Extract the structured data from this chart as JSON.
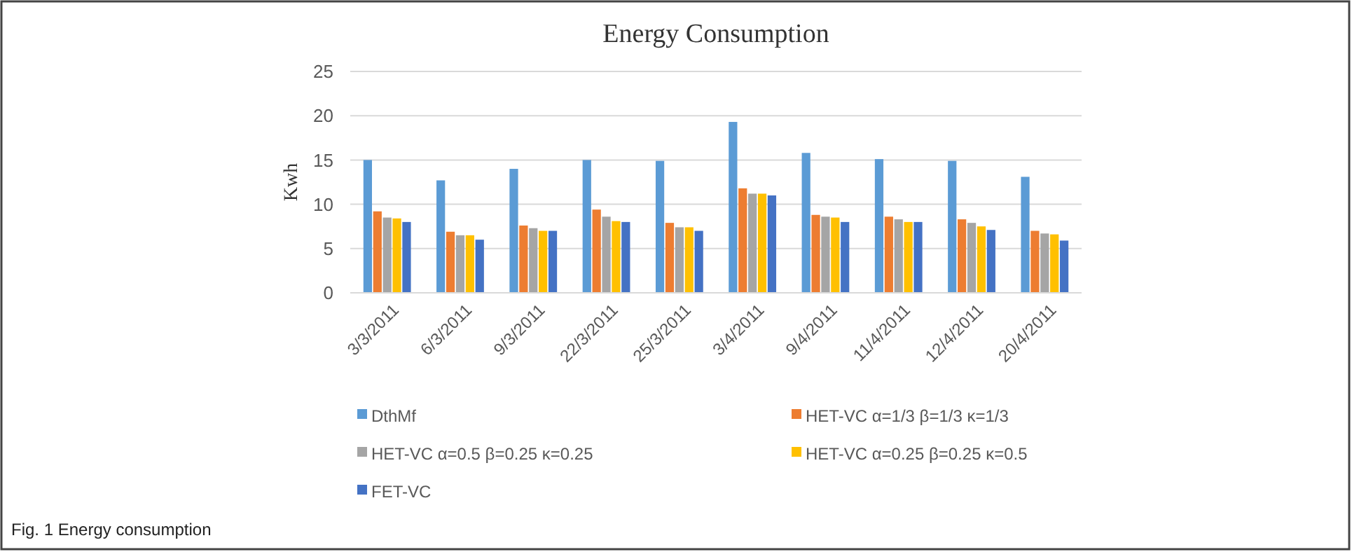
{
  "chart_data": {
    "type": "bar",
    "title": "Energy  Consumption",
    "ylabel": "Kwh",
    "categories": [
      "3/3/2011",
      "6/3/2011",
      "9/3/2011",
      "22/3/2011",
      "25/3/2011",
      "3/4/2011",
      "9/4/2011",
      "11/4/2011",
      "12/4/2011",
      "20/4/2011"
    ],
    "series": [
      {
        "name": "DthMf",
        "color": "#5b9bd5",
        "values": [
          15,
          12.7,
          14,
          15,
          14.9,
          19.3,
          15.8,
          15.1,
          14.9,
          13.1
        ]
      },
      {
        "name": "HET-VC   α=1/3 β=1/3 κ=1/3",
        "color": "#ed7d31",
        "values": [
          9.2,
          6.9,
          7.6,
          9.4,
          7.9,
          11.8,
          8.8,
          8.6,
          8.3,
          7.0
        ]
      },
      {
        "name": "HET-VC α=0.5 β=0.25 κ=0.25",
        "color": "#a5a5a5",
        "values": [
          8.5,
          6.5,
          7.3,
          8.6,
          7.4,
          11.2,
          8.6,
          8.3,
          7.9,
          6.7
        ]
      },
      {
        "name": "HET-VC α=0.25 β=0.25 κ=0.5",
        "color": "#ffc000",
        "values": [
          8.4,
          6.5,
          7.0,
          8.1,
          7.4,
          11.2,
          8.5,
          8.0,
          7.5,
          6.6
        ]
      },
      {
        "name": "FET-VC",
        "color": "#4472c4",
        "values": [
          8.0,
          6.0,
          7.0,
          8.0,
          7.0,
          11.0,
          8.0,
          8.0,
          7.1,
          5.9
        ]
      }
    ],
    "ylim": [
      0,
      25
    ],
    "yticks": [
      0,
      5,
      10,
      15,
      20,
      25
    ],
    "grid": "y",
    "legend": "bottom",
    "annotations": [
      "Fig. 1 Energy consumption"
    ]
  }
}
